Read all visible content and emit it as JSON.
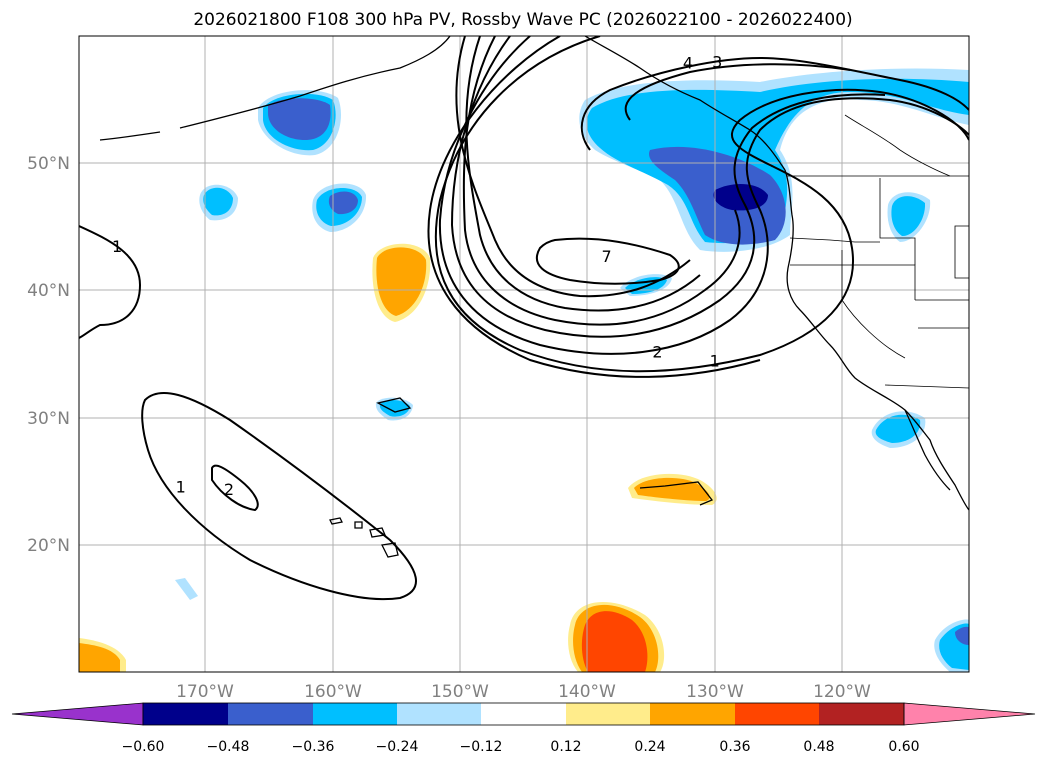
{
  "title": "2026021800 F108 300 hPa PV, Rossby Wave PC (2026022100 - 2026022400)",
  "map": {
    "lon_range": [
      -180,
      -110
    ],
    "lat_range": [
      10,
      60
    ],
    "lon_ticks": [
      {
        "value": -170,
        "label": "170°W"
      },
      {
        "value": -160,
        "label": "160°W"
      },
      {
        "value": -150,
        "label": "150°W"
      },
      {
        "value": -140,
        "label": "140°W"
      },
      {
        "value": -130,
        "label": "130°W"
      },
      {
        "value": -120,
        "label": "120°W"
      }
    ],
    "lat_ticks": [
      {
        "value": 50,
        "label": "50°N"
      },
      {
        "value": 40,
        "label": "40°N"
      },
      {
        "value": 30,
        "label": "30°N"
      },
      {
        "value": 20,
        "label": "20°N"
      }
    ]
  },
  "contour_labels": [
    {
      "text": "1",
      "lon": -177,
      "lat": 43.5
    },
    {
      "text": "7",
      "lon": -138.5,
      "lat": 42.7
    },
    {
      "text": "2",
      "lon": -134.5,
      "lat": 35.2
    },
    {
      "text": "1",
      "lon": -130,
      "lat": 34.5
    },
    {
      "text": "4",
      "lon": -132.1,
      "lat": 57.9
    },
    {
      "text": "3",
      "lon": -129.8,
      "lat": 58
    },
    {
      "text": "1",
      "lon": -172,
      "lat": 24.6
    },
    {
      "text": "2",
      "lon": -168.2,
      "lat": 24.4
    }
  ],
  "colorbar": {
    "colors": [
      "#9932CC",
      "#00008B",
      "#3A5FCD",
      "#00BFFF",
      "#B0E2FF",
      "#FFFFFF",
      "#FFEC8B",
      "#FFA500",
      "#FF4500",
      "#B22222",
      "#FF82AB"
    ],
    "labels": [
      "−0.60",
      "−0.48",
      "−0.36",
      "−0.24",
      "−0.12",
      "0.12",
      "0.24",
      "0.36",
      "0.48",
      "0.60"
    ]
  }
}
